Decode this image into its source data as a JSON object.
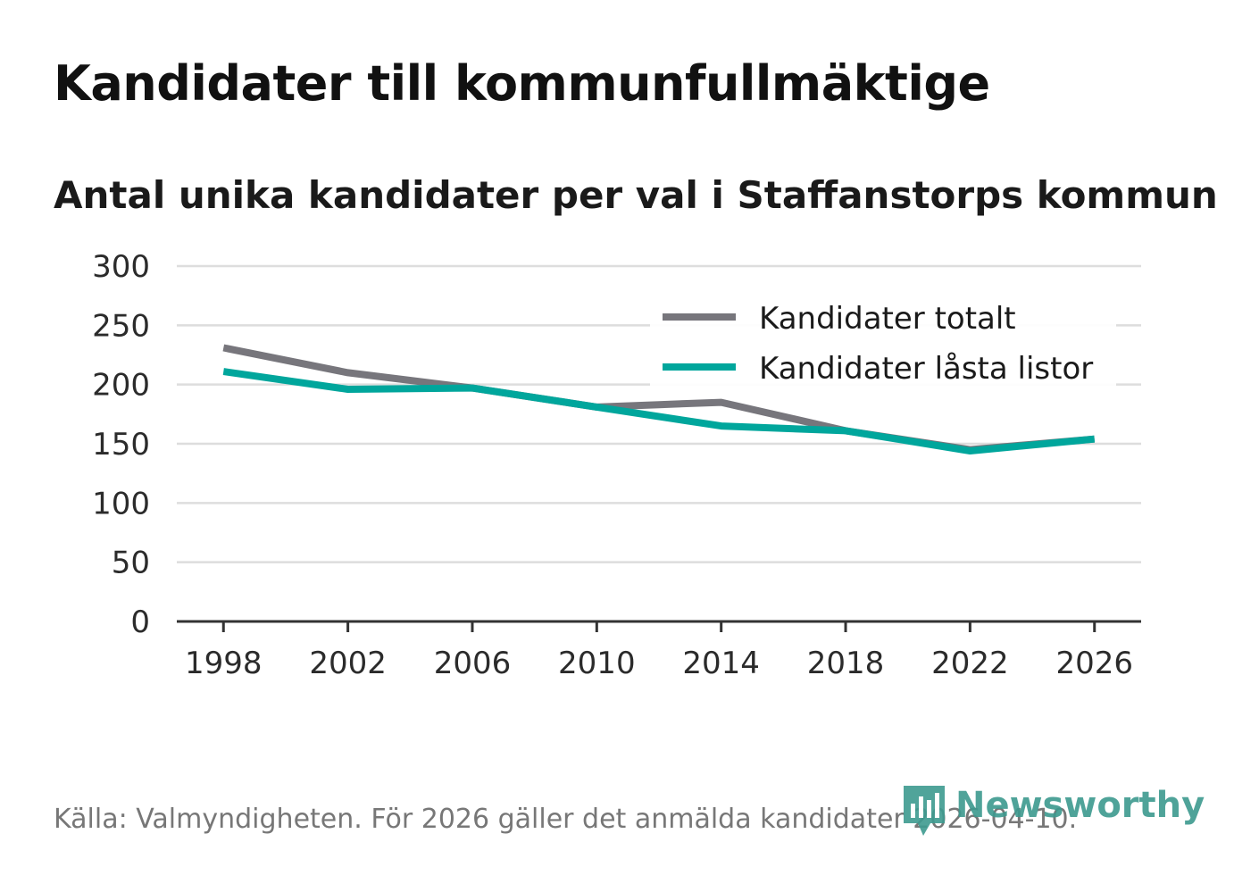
{
  "title": "Kandidater till kommunfullmäktige",
  "subtitle": "Antal unika kandidater per val i Staffanstorps kommun",
  "source": "Källa: Valmyndigheten. För 2026 gäller det anmälda kandidater 2026-04-10.",
  "brand": {
    "name": "Newsworthy",
    "icon": "newsworthy-logo-icon",
    "color": "#3d9a8f"
  },
  "chart_data": {
    "type": "line",
    "x": [
      1998,
      2002,
      2006,
      2010,
      2012,
      2014,
      2018,
      2022,
      2026
    ],
    "xticks": [
      "1998",
      "2002",
      "2006",
      "2010",
      "2014",
      "2018",
      "2022",
      "2026"
    ],
    "yticks": [
      "0",
      "50",
      "100",
      "150",
      "200",
      "250",
      "300"
    ],
    "ylim": [
      0,
      300
    ],
    "xlim": [
      1996.5,
      2027.5
    ],
    "series": [
      {
        "name": "Kandidater totalt",
        "color": "#77767c",
        "points": [
          [
            1998,
            231
          ],
          [
            2002,
            210
          ],
          [
            2006,
            197
          ],
          [
            2010,
            181
          ],
          [
            2012,
            183
          ],
          [
            2014,
            185
          ],
          [
            2018,
            161
          ],
          [
            2022,
            145
          ],
          [
            2026,
            154
          ]
        ]
      },
      {
        "name": "Kandidater låsta listor",
        "color": "#00a69c",
        "points": [
          [
            1998,
            211
          ],
          [
            2002,
            196
          ],
          [
            2006,
            197
          ],
          [
            2010,
            181
          ],
          [
            2014,
            165
          ],
          [
            2018,
            161
          ],
          [
            2022,
            144
          ],
          [
            2026,
            154
          ]
        ]
      }
    ],
    "legend_position": "top-right",
    "grid": true
  }
}
